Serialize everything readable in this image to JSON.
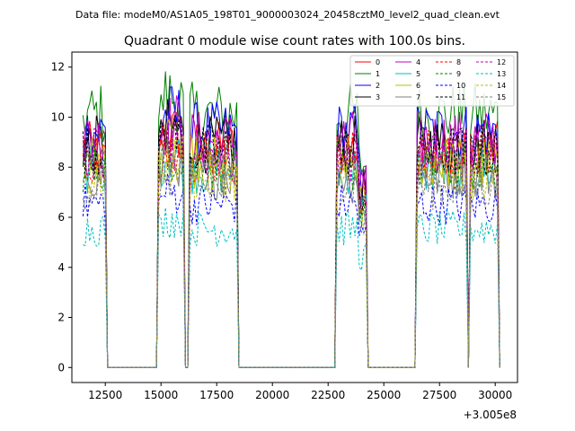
{
  "chart_data": {
    "type": "line",
    "suptitle": "Data file: modeM0/AS1A05_198T01_9000003024_20458cztM0_level2_quad_clean.evt",
    "title": "Quadrant 0 module wise count rates with 100.0s bins.",
    "xlabel": "",
    "ylabel": "",
    "x_offset_label": "+3.005e8",
    "xlim": [
      11000,
      31000
    ],
    "ylim": [
      -0.6,
      12.6
    ],
    "x_ticks": [
      12500,
      15000,
      17500,
      20000,
      22500,
      25000,
      27500,
      30000
    ],
    "x_tick_labels": [
      "12500",
      "15000",
      "17500",
      "20000",
      "22500",
      "25000",
      "27500",
      "30000"
    ],
    "y_ticks": [
      0,
      2,
      4,
      6,
      8,
      10,
      12
    ],
    "y_tick_labels": [
      "0",
      "2",
      "4",
      "6",
      "8",
      "10",
      "12"
    ],
    "bin_seconds": 100,
    "x_start": 11500,
    "x_end": 30200,
    "active_intervals": [
      [
        11500,
        12500
      ],
      [
        14900,
        16000
      ],
      [
        16300,
        18400
      ],
      [
        22900,
        23800
      ],
      [
        23900,
        24200
      ],
      [
        26500,
        28700
      ],
      [
        28900,
        29400
      ],
      [
        29500,
        30100
      ]
    ],
    "legend_position": "top-right",
    "series": [
      {
        "name": "0",
        "level": 8.8,
        "color": "#ff0000",
        "dash": "solid"
      },
      {
        "name": "1",
        "level": 10.2,
        "color": "#008000",
        "dash": "solid"
      },
      {
        "name": "2",
        "level": 9.5,
        "color": "#0000ff",
        "dash": "solid"
      },
      {
        "name": "3",
        "level": 9.0,
        "color": "#000000",
        "dash": "solid"
      },
      {
        "name": "4",
        "level": 9.2,
        "color": "#bf00bf",
        "dash": "solid"
      },
      {
        "name": "5",
        "level": 8.0,
        "color": "#00bfbf",
        "dash": "solid"
      },
      {
        "name": "6",
        "level": 8.3,
        "color": "#bfbf00",
        "dash": "solid"
      },
      {
        "name": "7",
        "level": 7.8,
        "color": "#808080",
        "dash": "solid"
      },
      {
        "name": "8",
        "level": 8.5,
        "color": "#ff0000",
        "dash": "dashed"
      },
      {
        "name": "9",
        "level": 8.1,
        "color": "#008000",
        "dash": "dashed"
      },
      {
        "name": "10",
        "level": 6.6,
        "color": "#0000ff",
        "dash": "dashed"
      },
      {
        "name": "11",
        "level": 8.7,
        "color": "#000000",
        "dash": "dashed"
      },
      {
        "name": "12",
        "level": 8.6,
        "color": "#bf00bf",
        "dash": "dashed"
      },
      {
        "name": "13",
        "level": 5.6,
        "color": "#00bfbf",
        "dash": "dashed"
      },
      {
        "name": "14",
        "level": 7.7,
        "color": "#bfbf00",
        "dash": "dashed"
      },
      {
        "name": "15",
        "level": 7.3,
        "color": "#808080",
        "dash": "dashed"
      }
    ]
  }
}
